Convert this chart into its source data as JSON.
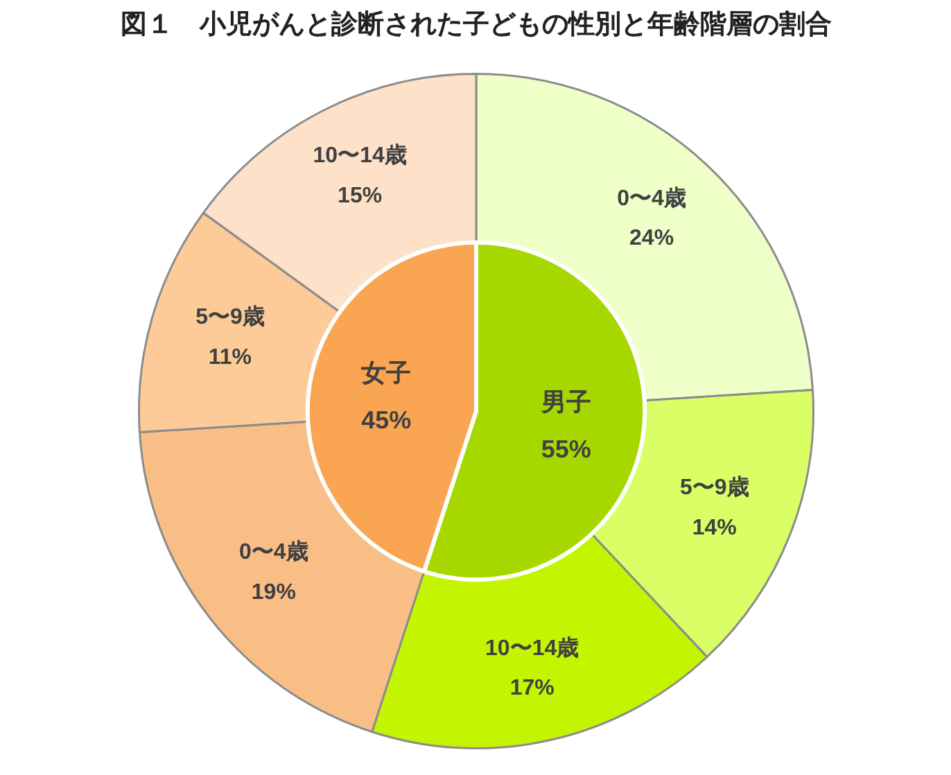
{
  "chart_data": {
    "type": "donut",
    "title": "図１　小児がんと診断された子どもの性別と年齢階層の割合",
    "data_labels": true,
    "series": [
      {
        "values": [
          55,
          45
        ],
        "value_labels": [
          "男子\n55%",
          "女子\n45%"
        ],
        "colors": [
          "#a6d800",
          "#f9a552"
        ]
      },
      {
        "values": [
          24,
          14,
          17,
          19,
          11,
          15
        ],
        "value_labels": [
          "0〜4歳\n24%",
          "5〜9歳\n14%",
          "10〜14歳\n17%",
          "0〜4歳\n19%",
          "5〜9歳\n11%",
          "10〜14歳\n15%"
        ],
        "colors": [
          "#efffc8",
          "#daff66",
          "#c4f500",
          "#f8be86",
          "#fdcb98",
          "#fde1c8"
        ]
      }
    ]
  }
}
